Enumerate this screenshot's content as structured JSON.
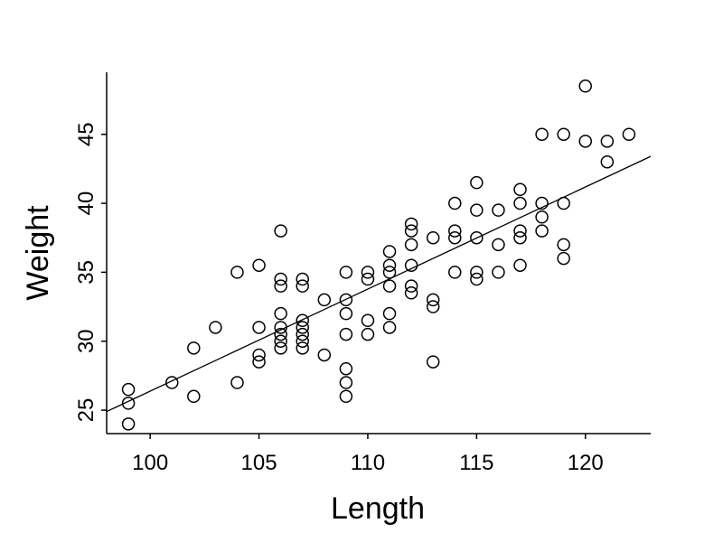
{
  "chart_data": {
    "type": "scatter",
    "title": "",
    "xlabel": "Length",
    "ylabel": "Weight",
    "xlim": [
      98,
      123
    ],
    "ylim": [
      23.3,
      49.5
    ],
    "xticks": [
      100,
      105,
      110,
      115,
      120
    ],
    "yticks": [
      25,
      30,
      35,
      40,
      45
    ],
    "grid": false,
    "marker": "open-circle",
    "colors": {
      "marker": "#000000",
      "line": "#000000",
      "axis": "#000000"
    },
    "fit_line": {
      "from": [
        98,
        24.9
      ],
      "to": [
        123,
        43.4
      ]
    },
    "points": [
      [
        99,
        24.0
      ],
      [
        99,
        25.5
      ],
      [
        99,
        26.5
      ],
      [
        101,
        27.0
      ],
      [
        102,
        26.0
      ],
      [
        102,
        29.5
      ],
      [
        103,
        31.0
      ],
      [
        104,
        27.0
      ],
      [
        104,
        35.0
      ],
      [
        105,
        28.5
      ],
      [
        105,
        29.0
      ],
      [
        105,
        31.0
      ],
      [
        105,
        35.5
      ],
      [
        106,
        29.5
      ],
      [
        106,
        30.0
      ],
      [
        106,
        30.5
      ],
      [
        106,
        31.0
      ],
      [
        106,
        32.0
      ],
      [
        106,
        34.0
      ],
      [
        106,
        34.5
      ],
      [
        106,
        38.0
      ],
      [
        107,
        29.5
      ],
      [
        107,
        30.0
      ],
      [
        107,
        30.5
      ],
      [
        107,
        31.0
      ],
      [
        107,
        31.5
      ],
      [
        107,
        34.0
      ],
      [
        107,
        34.5
      ],
      [
        108,
        29.0
      ],
      [
        108,
        33.0
      ],
      [
        109,
        26.0
      ],
      [
        109,
        27.0
      ],
      [
        109,
        28.0
      ],
      [
        109,
        30.5
      ],
      [
        109,
        32.0
      ],
      [
        109,
        33.0
      ],
      [
        109,
        35.0
      ],
      [
        110,
        30.5
      ],
      [
        110,
        31.5
      ],
      [
        110,
        34.5
      ],
      [
        110,
        35.0
      ],
      [
        111,
        31.0
      ],
      [
        111,
        32.0
      ],
      [
        111,
        34.0
      ],
      [
        111,
        35.0
      ],
      [
        111,
        35.5
      ],
      [
        111,
        36.5
      ],
      [
        112,
        33.5
      ],
      [
        112,
        34.0
      ],
      [
        112,
        35.5
      ],
      [
        112,
        37.0
      ],
      [
        112,
        38.0
      ],
      [
        112,
        38.5
      ],
      [
        113,
        28.5
      ],
      [
        113,
        32.5
      ],
      [
        113,
        33.0
      ],
      [
        113,
        37.5
      ],
      [
        114,
        35.0
      ],
      [
        114,
        37.5
      ],
      [
        114,
        38.0
      ],
      [
        114,
        40.0
      ],
      [
        115,
        34.5
      ],
      [
        115,
        35.0
      ],
      [
        115,
        37.5
      ],
      [
        115,
        39.5
      ],
      [
        115,
        41.5
      ],
      [
        116,
        35.0
      ],
      [
        116,
        37.0
      ],
      [
        116,
        39.5
      ],
      [
        117,
        35.5
      ],
      [
        117,
        37.5
      ],
      [
        117,
        38.0
      ],
      [
        117,
        40.0
      ],
      [
        117,
        41.0
      ],
      [
        118,
        38.0
      ],
      [
        118,
        39.0
      ],
      [
        118,
        40.0
      ],
      [
        118,
        45.0
      ],
      [
        119,
        36.0
      ],
      [
        119,
        37.0
      ],
      [
        119,
        40.0
      ],
      [
        119,
        45.0
      ],
      [
        120,
        44.5
      ],
      [
        120,
        48.5
      ],
      [
        121,
        43.0
      ],
      [
        121,
        44.5
      ],
      [
        122,
        45.0
      ]
    ]
  }
}
